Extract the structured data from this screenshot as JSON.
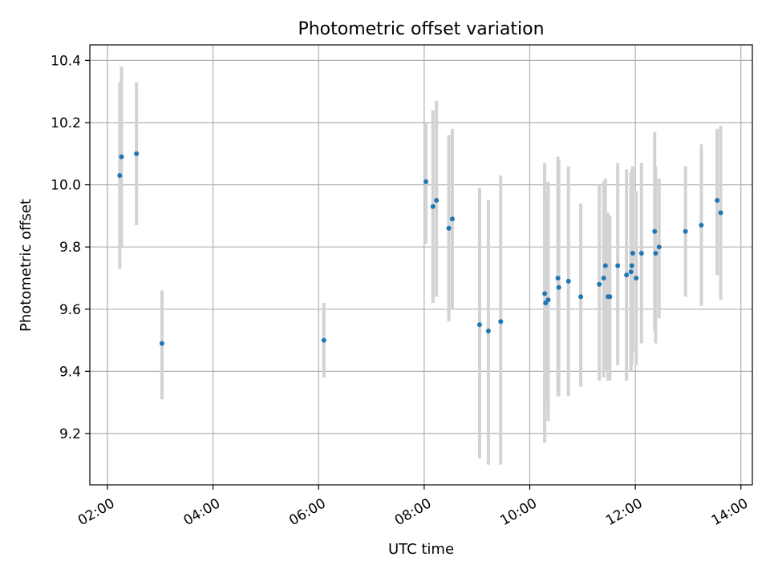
{
  "chart_data": {
    "type": "scatter",
    "title": "Photometric offset variation",
    "xlabel": "UTC time",
    "ylabel": "Photometric offset",
    "x_ticks": [
      "02:00",
      "04:00",
      "06:00",
      "08:00",
      "10:00",
      "12:00",
      "14:00"
    ],
    "y_ticks": [
      "9.2",
      "9.4",
      "9.6",
      "9.8",
      "10.0",
      "10.2",
      "10.4"
    ],
    "xlim": [
      "01:40",
      "14:13"
    ],
    "ylim": [
      9.035,
      10.45
    ],
    "grid": true,
    "colors": {
      "point": "#1f77b4",
      "errorbar": "#d3d3d3",
      "grid": "#b0b0b0"
    },
    "points": [
      {
        "x": "02:14",
        "y": 10.03,
        "lo": 9.73,
        "hi": 10.33
      },
      {
        "x": "02:16",
        "y": 10.09,
        "lo": 9.8,
        "hi": 10.38
      },
      {
        "x": "02:33",
        "y": 10.1,
        "lo": 9.87,
        "hi": 10.33
      },
      {
        "x": "03:02",
        "y": 9.49,
        "lo": 9.31,
        "hi": 9.66
      },
      {
        "x": "06:06",
        "y": 9.5,
        "lo": 9.38,
        "hi": 9.62
      },
      {
        "x": "08:02",
        "y": 10.01,
        "lo": 9.81,
        "hi": 10.2
      },
      {
        "x": "08:10",
        "y": 9.93,
        "lo": 9.62,
        "hi": 10.24
      },
      {
        "x": "08:14",
        "y": 9.95,
        "lo": 9.64,
        "hi": 10.27
      },
      {
        "x": "08:28",
        "y": 9.86,
        "lo": 9.56,
        "hi": 10.16
      },
      {
        "x": "08:32",
        "y": 9.89,
        "lo": 9.6,
        "hi": 10.18
      },
      {
        "x": "09:03",
        "y": 9.55,
        "lo": 9.12,
        "hi": 9.99
      },
      {
        "x": "09:13",
        "y": 9.53,
        "lo": 9.1,
        "hi": 9.95
      },
      {
        "x": "09:27",
        "y": 9.56,
        "lo": 9.1,
        "hi": 10.03
      },
      {
        "x": "10:17",
        "y": 9.65,
        "lo": 9.17,
        "hi": 10.07
      },
      {
        "x": "10:18",
        "y": 9.62,
        "lo": 9.3,
        "hi": 9.97
      },
      {
        "x": "10:21",
        "y": 9.63,
        "lo": 9.24,
        "hi": 10.01
      },
      {
        "x": "10:32",
        "y": 9.7,
        "lo": 9.32,
        "hi": 10.09
      },
      {
        "x": "10:33",
        "y": 9.67,
        "lo": 9.32,
        "hi": 10.08
      },
      {
        "x": "10:44",
        "y": 9.69,
        "lo": 9.32,
        "hi": 10.06
      },
      {
        "x": "10:58",
        "y": 9.64,
        "lo": 9.35,
        "hi": 9.94
      },
      {
        "x": "11:19",
        "y": 9.68,
        "lo": 9.37,
        "hi": 10.0
      },
      {
        "x": "11:24",
        "y": 9.7,
        "lo": 9.38,
        "hi": 10.01
      },
      {
        "x": "11:26",
        "y": 9.74,
        "lo": 9.4,
        "hi": 10.02
      },
      {
        "x": "11:29",
        "y": 9.64,
        "lo": 9.37,
        "hi": 9.91
      },
      {
        "x": "11:31",
        "y": 9.64,
        "lo": 9.37,
        "hi": 9.9
      },
      {
        "x": "11:40",
        "y": 9.74,
        "lo": 9.42,
        "hi": 10.07
      },
      {
        "x": "11:50",
        "y": 9.71,
        "lo": 9.37,
        "hi": 10.05
      },
      {
        "x": "11:55",
        "y": 9.72,
        "lo": 9.4,
        "hi": 10.04
      },
      {
        "x": "11:56",
        "y": 9.74,
        "lo": 9.42,
        "hi": 10.05
      },
      {
        "x": "11:57",
        "y": 9.78,
        "lo": 9.46,
        "hi": 10.06
      },
      {
        "x": "12:01",
        "y": 9.7,
        "lo": 9.42,
        "hi": 9.98
      },
      {
        "x": "12:07",
        "y": 9.78,
        "lo": 9.49,
        "hi": 10.07
      },
      {
        "x": "12:22",
        "y": 9.85,
        "lo": 9.53,
        "hi": 10.17
      },
      {
        "x": "12:23",
        "y": 9.78,
        "lo": 9.49,
        "hi": 10.06
      },
      {
        "x": "12:27",
        "y": 9.8,
        "lo": 9.57,
        "hi": 10.02
      },
      {
        "x": "12:57",
        "y": 9.85,
        "lo": 9.64,
        "hi": 10.06
      },
      {
        "x": "13:15",
        "y": 9.87,
        "lo": 9.61,
        "hi": 10.13
      },
      {
        "x": "13:33",
        "y": 9.95,
        "lo": 9.71,
        "hi": 10.18
      },
      {
        "x": "13:37",
        "y": 9.91,
        "lo": 9.63,
        "hi": 10.19
      }
    ]
  }
}
